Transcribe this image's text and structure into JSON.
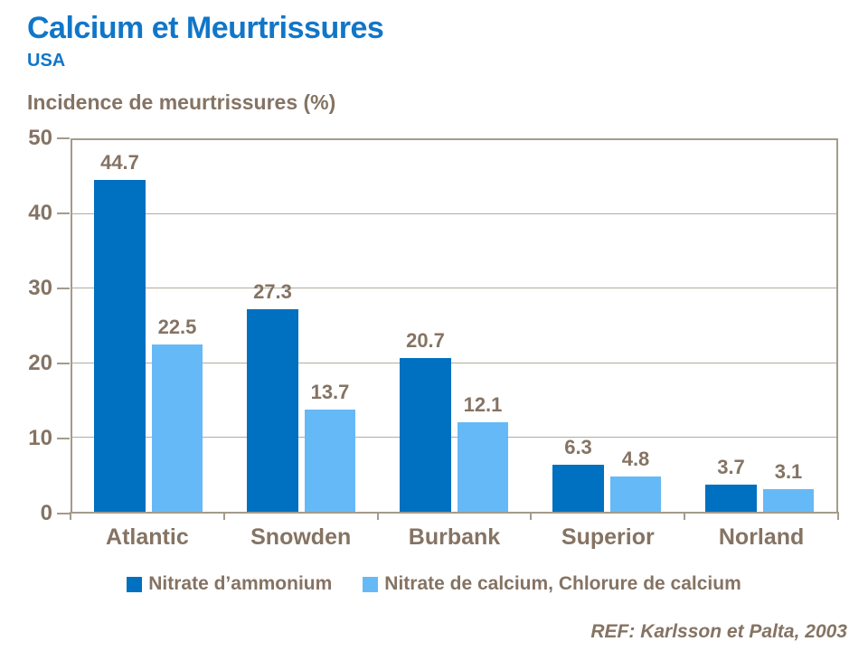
{
  "slide": {
    "title": "Calcium et Meurtrissures",
    "subtitle": "USA",
    "reference": "REF: Karlsson et Palta, 2003"
  },
  "colors": {
    "title_blue": "#1176C8",
    "text_brown": "#857363",
    "plot_border_tan": "#A49B8C",
    "gridline_gray": "#B2AB9F",
    "series1_dark_blue": "#0070C0",
    "series2_light_blue": "#66B9F7"
  },
  "chart_data": {
    "type": "bar",
    "title": "Calcium et Meurtrissures — USA",
    "ylabel": "Incidence de meurtrissures (%)",
    "xlabel": "",
    "categories": [
      "Atlantic",
      "Snowden",
      "Burbank",
      "Superior",
      "Norland"
    ],
    "series": [
      {
        "name": "Nitrate d’ammonium",
        "color": "#0070C0",
        "values": [
          44.7,
          27.3,
          20.7,
          6.3,
          3.7
        ]
      },
      {
        "name": "Nitrate de calcium, Chlorure de calcium",
        "color": "#66B9F7",
        "values": [
          22.5,
          13.7,
          12.1,
          4.8,
          3.1
        ]
      }
    ],
    "data_labels": [
      "44.7",
      "27.3",
      "20.7",
      "6.3",
      "3.7",
      "22.5",
      "13.7",
      "12.1",
      "4.8",
      "3.1"
    ],
    "ylim": [
      0,
      50
    ],
    "yticks": [
      0,
      10,
      20,
      30,
      40,
      50
    ],
    "grid": true,
    "legend_position": "bottom"
  }
}
